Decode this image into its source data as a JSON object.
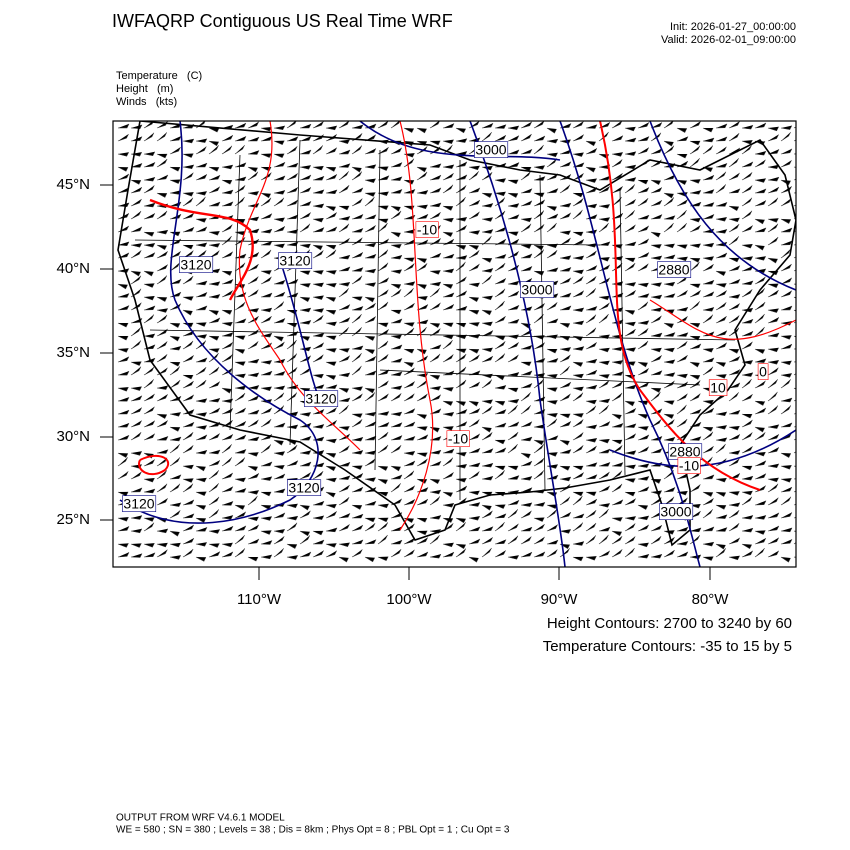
{
  "header": {
    "title": "IWFAQRP Contiguous US Real Time WRF",
    "init": "Init: 2026-01-27_00:00:00",
    "valid": "Valid: 2026-02-01_09:00:00"
  },
  "fields": [
    "Temperature   (C)",
    "Height   (m)",
    "Winds   (kts)"
  ],
  "map": {
    "lat_labels": [
      "45°N",
      "40°N",
      "35°N",
      "30°N",
      "25°N"
    ],
    "lon_labels": [
      "110°W",
      "100°W",
      "90°W",
      "80°W"
    ],
    "height_color": "#000080",
    "temperature_color": "#ff0000",
    "height_labels": [
      "3000",
      "3120",
      "3120",
      "3000",
      "2880",
      "3120",
      "3120",
      "3120",
      "2880",
      "3000"
    ],
    "temperature_labels": [
      "-10",
      "-10",
      "10",
      "-10",
      "0"
    ]
  },
  "legend": [
    "Height Contours: 2700 to 3240 by 60",
    "Temperature Contours: -35 to 15 by 5"
  ],
  "footer": [
    "OUTPUT FROM WRF V4.6.1 MODEL",
    "WE = 580 ; SN = 380 ; Levels = 38 ; Dis = 8km ; Phys Opt = 8 ; PBL Opt = 1 ; Cu Opt = 3"
  ]
}
